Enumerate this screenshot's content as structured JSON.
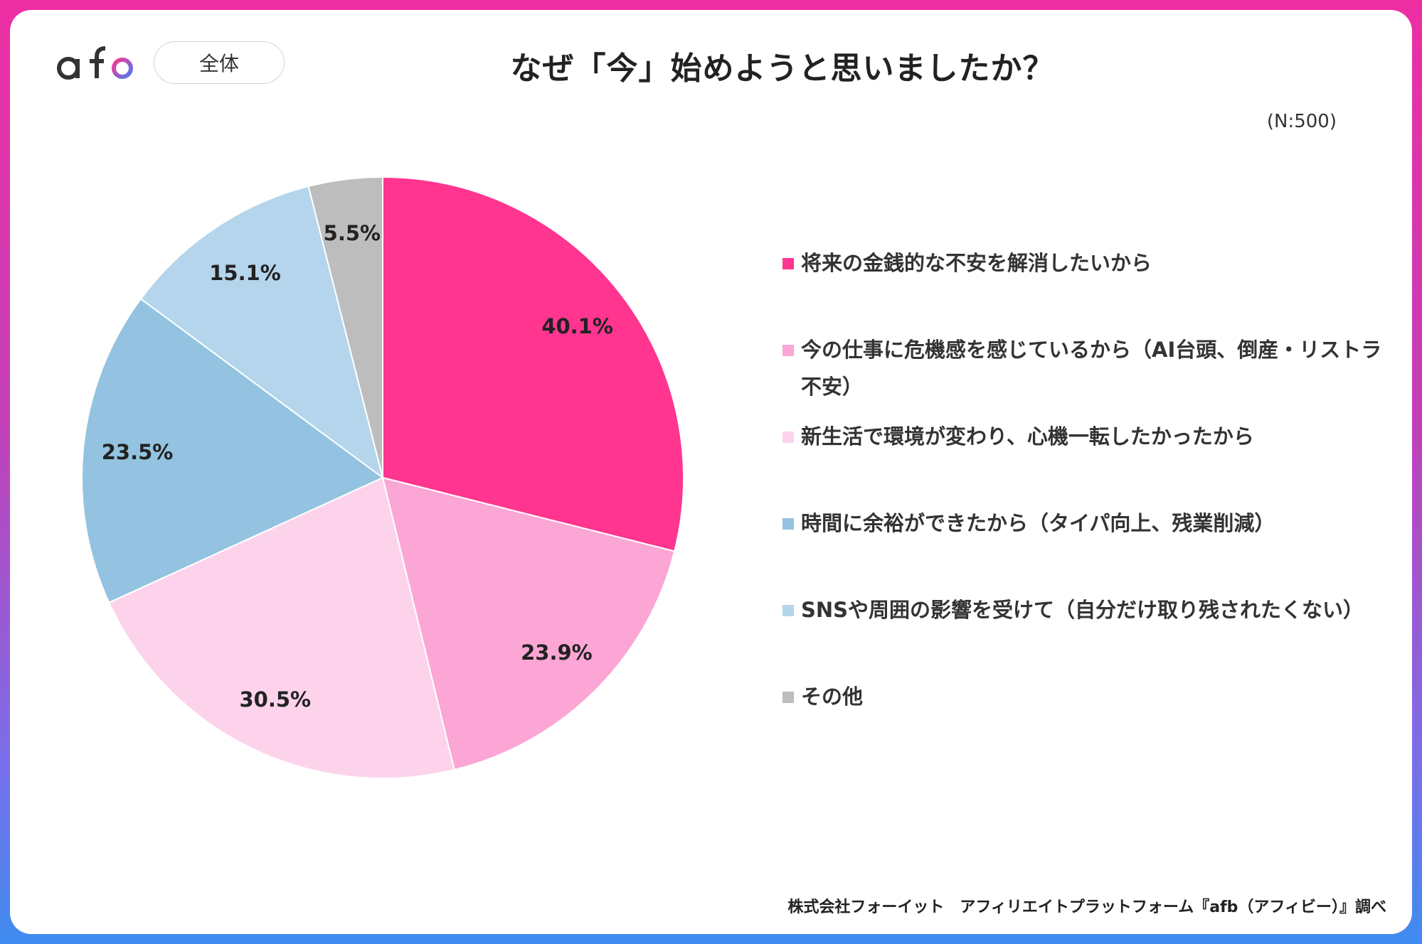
{
  "header": {
    "logo_text": "afb",
    "badge_label": "全体",
    "title": "なぜ「今」始めようと思いましたか？",
    "sample_size": "(N:500)"
  },
  "footer": {
    "source": "株式会社フォーイット　アフィリエイトプラットフォーム『afb（アフィビー）』調べ"
  },
  "chart_data": {
    "type": "pie",
    "slices": [
      {
        "label": "将来の金銭的な不安を解消したいから",
        "value": 40.1,
        "display": "40.1%",
        "color": "#ff3590"
      },
      {
        "label": "今の仕事に危機感を感じているから（AI台頭、倒産・リストラ不安）",
        "value": 23.9,
        "display": "23.9%",
        "color": "#fba6d5"
      },
      {
        "label": "新生活で環境が変わり、心機一転したかったから",
        "value": 30.5,
        "display": "30.5%",
        "color": "#fdd3ec"
      },
      {
        "label": "時間に余裕ができたから（タイパ向上、残業削減）",
        "value": 23.5,
        "display": "23.5%",
        "color": "#93c3e0"
      },
      {
        "label": "SNSや周囲の影響を受けて（自分だけ取り残されたくない）",
        "value": 15.1,
        "display": "15.1%",
        "color": "#b4d5ec"
      },
      {
        "label": "その他",
        "value": 5.5,
        "display": "5.5%",
        "color": "#bdbdbd"
      }
    ]
  }
}
